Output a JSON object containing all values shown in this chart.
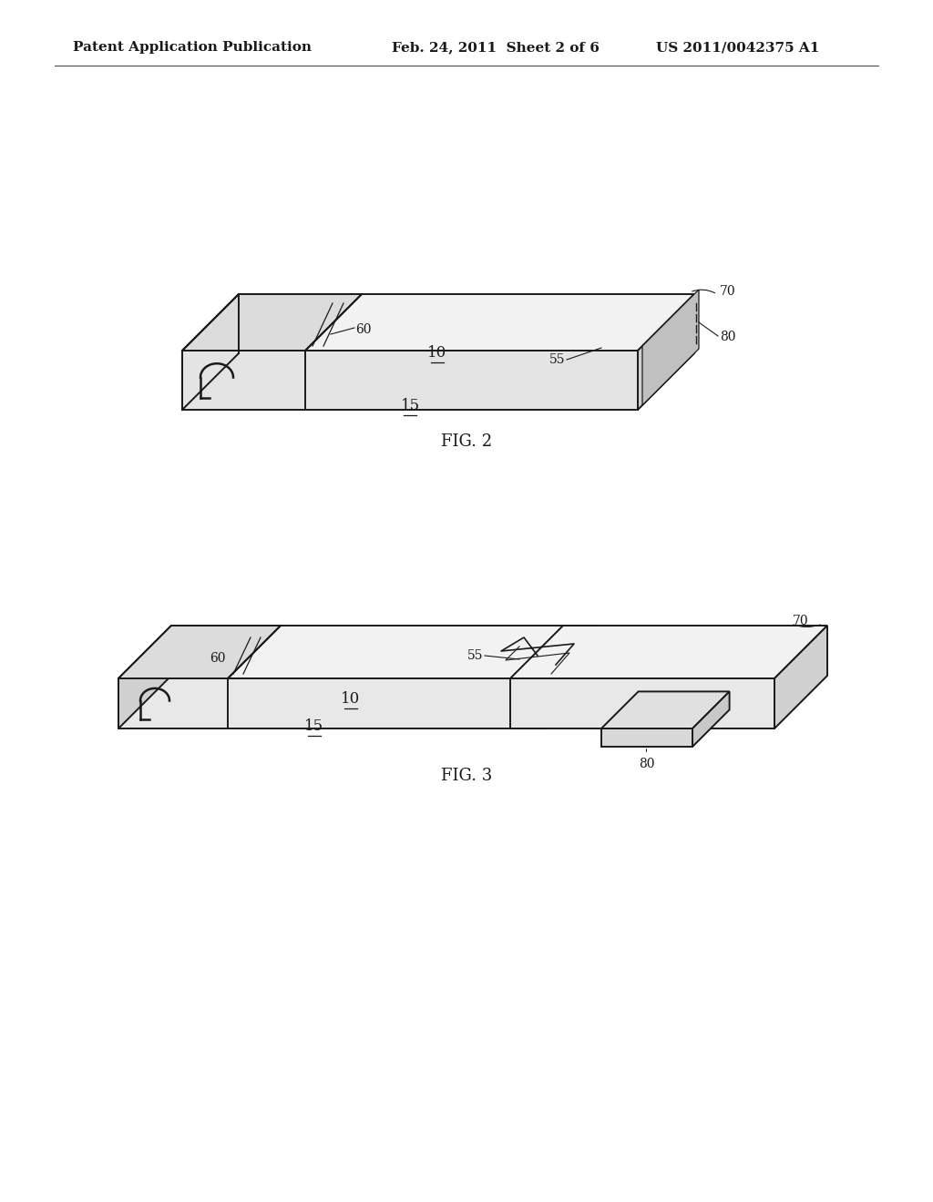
{
  "background_color": "#ffffff",
  "line_color": "#1a1a1a",
  "header_left": "Patent Application Publication",
  "header_mid": "Feb. 24, 2011  Sheet 2 of 6",
  "header_right": "US 2011/0042375 A1",
  "fig2_label": "FIG. 2",
  "fig3_label": "FIG. 3",
  "header_fontsize": 11,
  "fig_label_fontsize": 13
}
